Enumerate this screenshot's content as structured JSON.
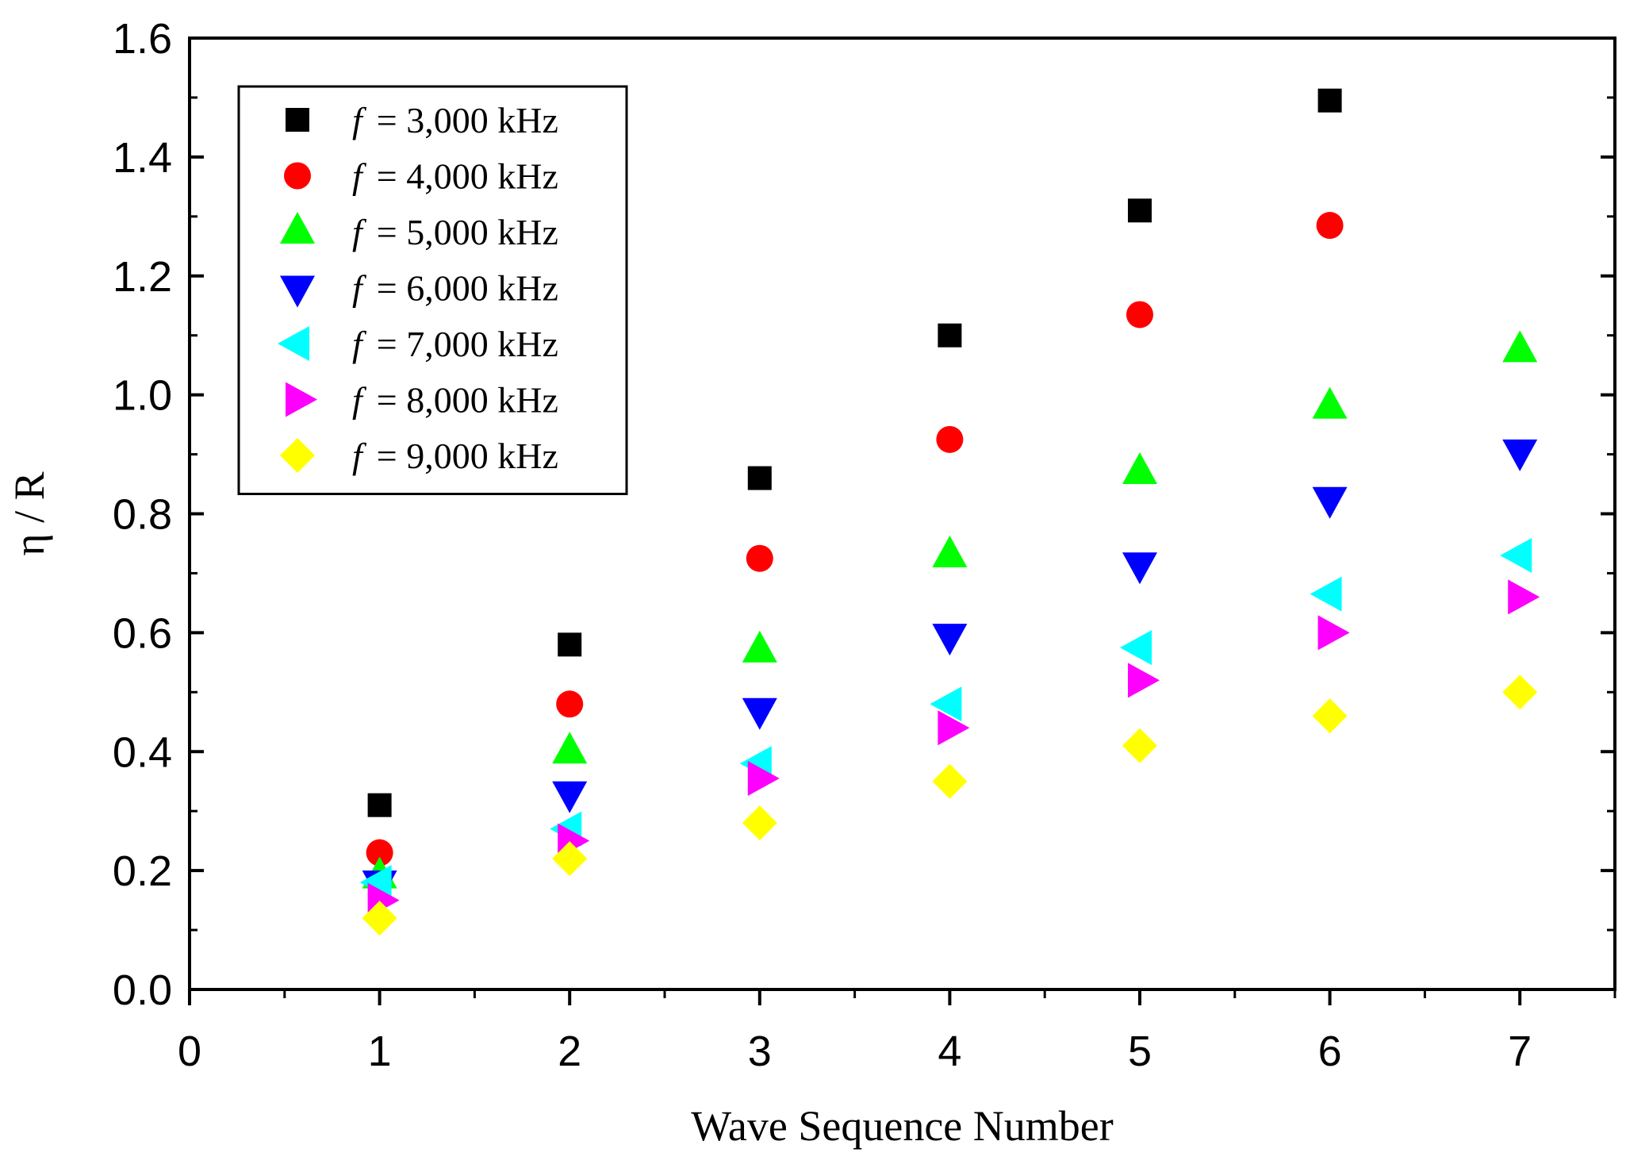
{
  "chart_data": {
    "type": "scatter",
    "title": "",
    "xlabel": "Wave Sequence Number",
    "ylabel": "η / R",
    "xlim": [
      0,
      7.5
    ],
    "ylim": [
      0,
      1.6
    ],
    "xticks": [
      0,
      1,
      2,
      3,
      4,
      5,
      6,
      7
    ],
    "xtick_labels": [
      "0",
      "1",
      "2",
      "3",
      "4",
      "5",
      "6",
      "7"
    ],
    "yticks": [
      0.0,
      0.2,
      0.4,
      0.6,
      0.8,
      1.0,
      1.2,
      1.4,
      1.6
    ],
    "ytick_labels": [
      "0.0",
      "0.2",
      "0.4",
      "0.6",
      "0.8",
      "1.0",
      "1.2",
      "1.4",
      "1.6"
    ],
    "legend_position": "top-left",
    "legend_var": "f",
    "series": [
      {
        "name": "= 3,000 kHz",
        "color": "#000000",
        "marker": "square",
        "x": [
          1,
          2,
          3,
          4,
          5,
          6
        ],
        "y": [
          0.31,
          0.58,
          0.86,
          1.1,
          1.31,
          1.495
        ]
      },
      {
        "name": "= 4,000 kHz",
        "color": "#ff0000",
        "marker": "circle",
        "x": [
          1,
          2,
          3,
          4,
          5,
          6
        ],
        "y": [
          0.23,
          0.48,
          0.725,
          0.925,
          1.135,
          1.285
        ]
      },
      {
        "name": "= 5,000 kHz",
        "color": "#00ff00",
        "marker": "triangle-up",
        "x": [
          1,
          2,
          3,
          4,
          5,
          6,
          7
        ],
        "y": [
          0.19,
          0.4,
          0.57,
          0.73,
          0.87,
          0.98,
          1.075
        ]
      },
      {
        "name": "= 6,000 kHz",
        "color": "#0000ff",
        "marker": "triangle-down",
        "x": [
          1,
          2,
          3,
          4,
          5,
          6,
          7
        ],
        "y": [
          0.18,
          0.33,
          0.47,
          0.595,
          0.715,
          0.825,
          0.905
        ]
      },
      {
        "name": "= 7,000 kHz",
        "color": "#00ffff",
        "marker": "triangle-left",
        "x": [
          1,
          2,
          3,
          4,
          5,
          6,
          7
        ],
        "y": [
          0.18,
          0.27,
          0.38,
          0.48,
          0.575,
          0.665,
          0.73
        ]
      },
      {
        "name": "= 8,000 kHz",
        "color": "#ff00ff",
        "marker": "triangle-right",
        "x": [
          1,
          2,
          3,
          4,
          5,
          6,
          7
        ],
        "y": [
          0.15,
          0.25,
          0.355,
          0.44,
          0.52,
          0.6,
          0.66
        ]
      },
      {
        "name": "= 9,000 kHz",
        "color": "#ffff00",
        "marker": "diamond",
        "x": [
          1,
          2,
          3,
          4,
          5,
          6,
          7
        ],
        "y": [
          0.12,
          0.22,
          0.28,
          0.35,
          0.41,
          0.46,
          0.5
        ]
      }
    ]
  }
}
